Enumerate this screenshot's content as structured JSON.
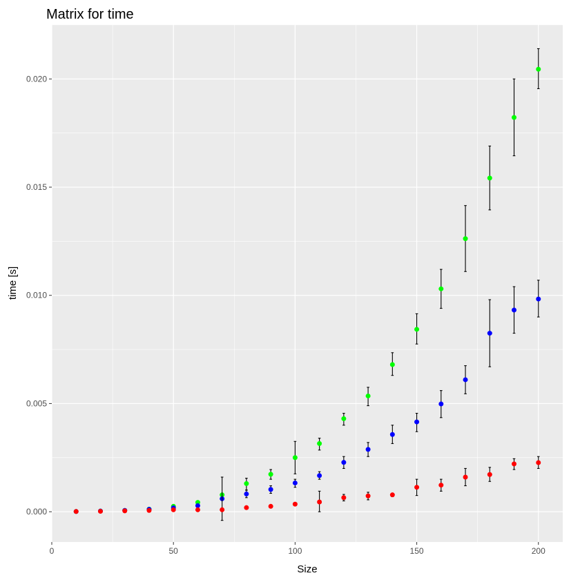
{
  "chart_data": {
    "type": "scatter",
    "title": "Matrix for time",
    "xlabel": "Size",
    "ylabel": "time [s]",
    "xlim": [
      0,
      210
    ],
    "ylim": [
      -0.0014,
      0.0225
    ],
    "x_ticks": [
      {
        "value": 0,
        "label": "0"
      },
      {
        "value": 50,
        "label": "50"
      },
      {
        "value": 100,
        "label": "100"
      },
      {
        "value": 150,
        "label": "150"
      },
      {
        "value": 200,
        "label": "200"
      }
    ],
    "y_ticks": [
      {
        "value": 0.0,
        "label": "0.000"
      },
      {
        "value": 0.005,
        "label": "0.005"
      },
      {
        "value": 0.01,
        "label": "0.010"
      },
      {
        "value": 0.015,
        "label": "0.015"
      },
      {
        "value": 0.02,
        "label": "0.020"
      }
    ],
    "grid": true,
    "background": "#ebebeb",
    "series": [
      {
        "color": "#00ff00",
        "x": [
          10,
          20,
          30,
          40,
          50,
          60,
          70,
          80,
          90,
          100,
          110,
          120,
          130,
          140,
          150,
          160,
          170,
          180,
          190,
          200
        ],
        "y": [
          1e-05,
          3e-05,
          6e-05,
          0.00012,
          0.00025,
          0.00043,
          0.00078,
          0.0013,
          0.00173,
          0.0025,
          0.00315,
          0.0043,
          0.00535,
          0.0068,
          0.00843,
          0.0103,
          0.01262,
          0.01542,
          0.01822,
          0.02045
        ],
        "err_low": [
          null,
          null,
          null,
          null,
          null,
          null,
          null,
          0.001,
          0.0015,
          0.00175,
          0.00285,
          0.004,
          0.0049,
          0.0063,
          0.00775,
          0.0094,
          0.0111,
          0.01395,
          0.01645,
          0.01955
        ],
        "err_high": [
          null,
          null,
          null,
          null,
          null,
          null,
          null,
          0.00155,
          0.00195,
          0.00325,
          0.0034,
          0.00455,
          0.00575,
          0.00735,
          0.00915,
          0.0112,
          0.01415,
          0.0169,
          0.02,
          0.0214
        ]
      },
      {
        "color": "#0000ff",
        "x": [
          10,
          20,
          30,
          40,
          50,
          60,
          70,
          80,
          90,
          100,
          110,
          120,
          130,
          140,
          150,
          160,
          170,
          180,
          190,
          200
        ],
        "y": [
          1e-05,
          3e-05,
          6e-05,
          0.00011,
          0.00018,
          0.00028,
          0.0006,
          0.00082,
          0.00103,
          0.00133,
          0.00167,
          0.00228,
          0.00288,
          0.00357,
          0.00415,
          0.00498,
          0.0061,
          0.00825,
          0.00932,
          0.00983
        ],
        "err_low": [
          null,
          null,
          null,
          null,
          null,
          null,
          null,
          0.00065,
          0.00085,
          0.00113,
          0.0015,
          0.002,
          0.00255,
          0.00315,
          0.0037,
          0.00435,
          0.00545,
          0.0067,
          0.00825,
          0.009
        ],
        "err_high": [
          null,
          null,
          null,
          null,
          null,
          null,
          null,
          0.001,
          0.0012,
          0.0015,
          0.00185,
          0.00255,
          0.0032,
          0.004,
          0.00455,
          0.0056,
          0.00675,
          0.0098,
          0.0104,
          0.0107
        ]
      },
      {
        "color": "#ff0000",
        "x": [
          10,
          20,
          30,
          40,
          50,
          60,
          70,
          80,
          90,
          100,
          110,
          120,
          130,
          140,
          150,
          160,
          170,
          180,
          190,
          200
        ],
        "y": [
          1e-05,
          2e-05,
          4e-05,
          6e-05,
          9e-05,
          9e-05,
          9e-05,
          0.00019,
          0.00025,
          0.00035,
          0.00045,
          0.00065,
          0.00073,
          0.00078,
          0.00113,
          0.00123,
          0.0016,
          0.00172,
          0.00221,
          0.00227
        ],
        "err_low": [
          null,
          null,
          null,
          null,
          null,
          null,
          -0.0004,
          0.00015,
          0.0002,
          0.0003,
          0.0,
          0.0005,
          0.00055,
          0.0007,
          0.00075,
          0.00095,
          0.0012,
          0.0014,
          0.00195,
          0.002
        ],
        "err_high": [
          null,
          null,
          null,
          null,
          null,
          null,
          0.0016,
          0.00023,
          0.0003,
          0.0004,
          0.00095,
          0.0008,
          0.0009,
          0.00085,
          0.0015,
          0.0015,
          0.002,
          0.00205,
          0.00245,
          0.00255
        ]
      }
    ]
  }
}
